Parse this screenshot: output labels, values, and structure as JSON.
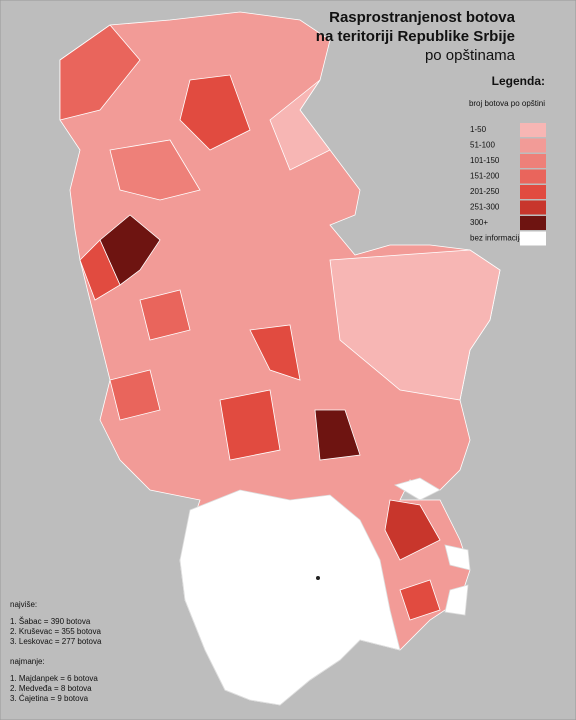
{
  "header": {
    "title_lines": [
      "Rasprostranjenost botova",
      "na teritoriji Republike Srbije",
      "po opštinama"
    ]
  },
  "legend": {
    "title": "Legenda:",
    "subtitle": "broj botova po opštini",
    "items": [
      {
        "label": "1-50",
        "color": "#f7b6b4"
      },
      {
        "label": "51-100",
        "color": "#f29b97"
      },
      {
        "label": "101-150",
        "color": "#ee8079"
      },
      {
        "label": "151-200",
        "color": "#e9655c"
      },
      {
        "label": "201-250",
        "color": "#e14b40"
      },
      {
        "label": "251-300",
        "color": "#c8362c"
      },
      {
        "label": "300+",
        "color": "#6e1411"
      },
      {
        "label": "bez informacija",
        "color": "#ffffff"
      }
    ]
  },
  "notes": {
    "most_title": "najviše:",
    "most": [
      "1. Šabac = 390 botova",
      "2. Kruševac = 355 botova",
      "3. Leskovac = 277 botova"
    ],
    "least_title": "najmanje:",
    "least": [
      "1. Majdanpek = 6 botova",
      "2. Medveđa = 8 botova",
      "3. Ćajetina = 9 botova"
    ]
  }
}
